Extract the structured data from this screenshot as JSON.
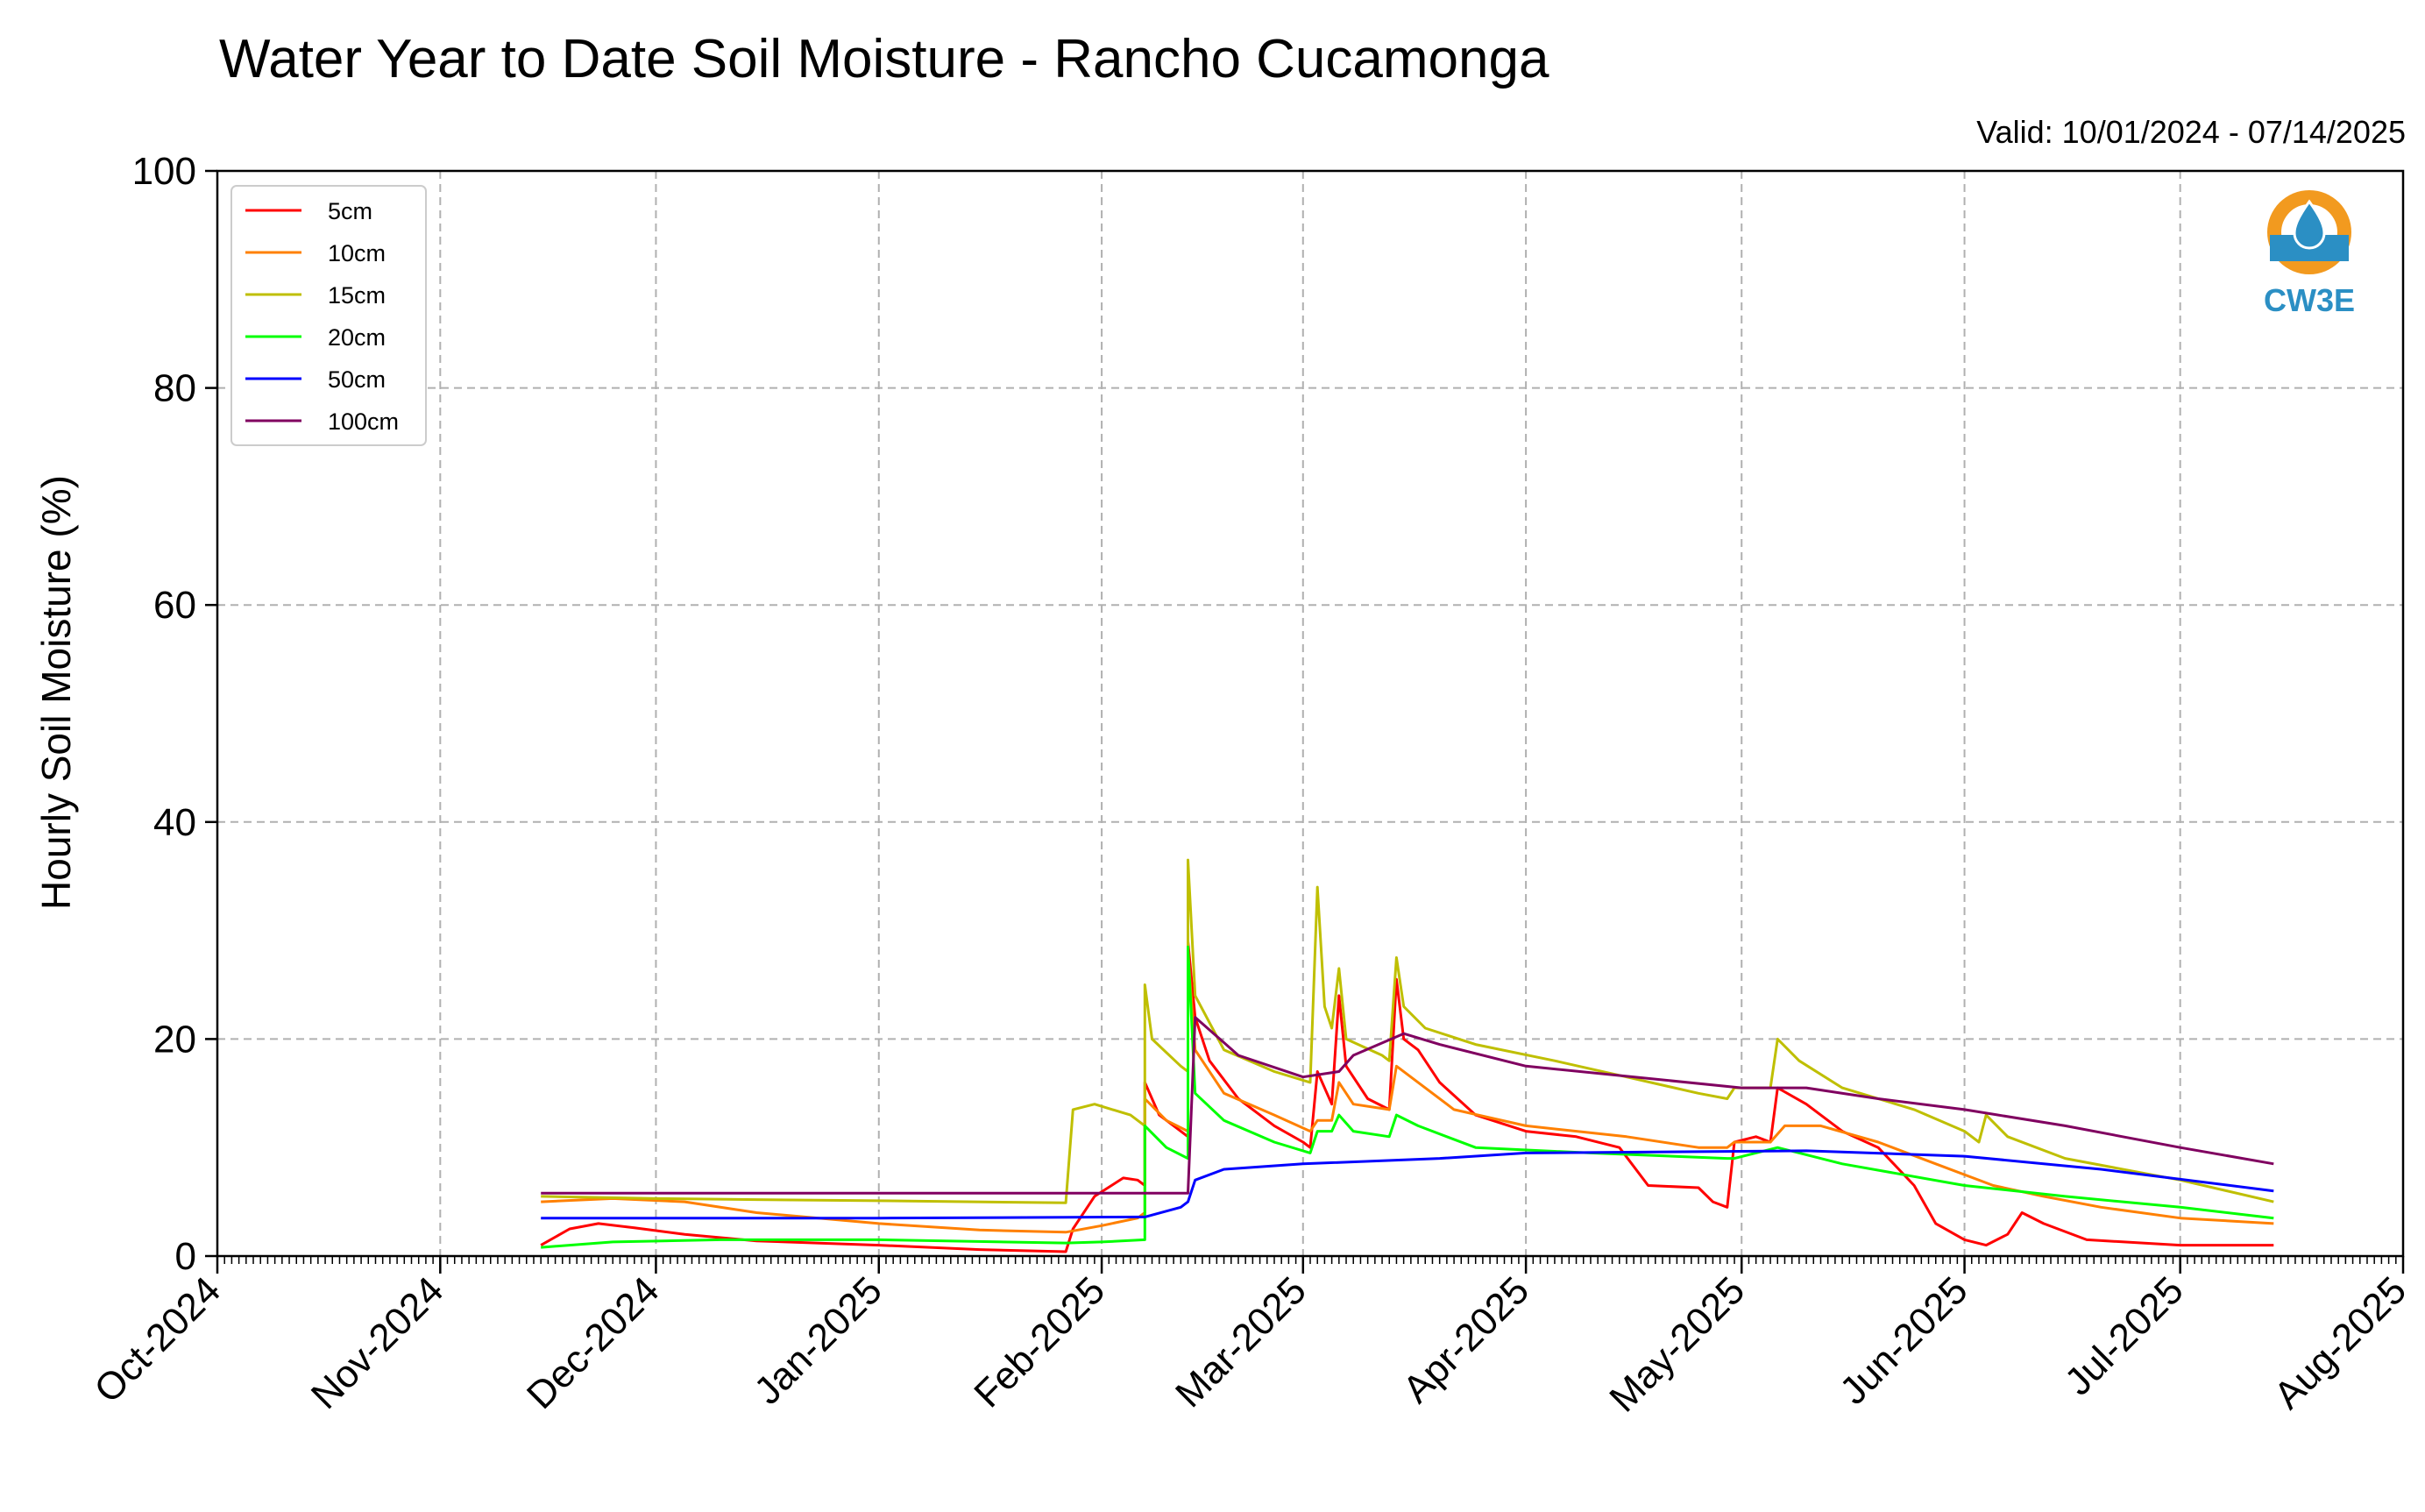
{
  "chart_data": {
    "type": "line",
    "title": "Water Year to Date Soil Moisture - Rancho Cucamonga",
    "subtitle": "Valid: 10/01/2024 - 07/14/2025",
    "ylabel": "Hourly Soil Moisture (%)",
    "xlabel": "",
    "ylim": [
      0,
      100
    ],
    "yticks": [
      "0",
      "20",
      "40",
      "60",
      "80",
      "100"
    ],
    "xlim": [
      "2024-10-01",
      "2025-08-01"
    ],
    "xticks": [
      {
        "date": "2024-10-01",
        "label": "Oct-2024"
      },
      {
        "date": "2024-11-01",
        "label": "Nov-2024"
      },
      {
        "date": "2024-12-01",
        "label": "Dec-2024"
      },
      {
        "date": "2025-01-01",
        "label": "Jan-2025"
      },
      {
        "date": "2025-02-01",
        "label": "Feb-2025"
      },
      {
        "date": "2025-03-01",
        "label": "Mar-2025"
      },
      {
        "date": "2025-04-01",
        "label": "Apr-2025"
      },
      {
        "date": "2025-05-01",
        "label": "May-2025"
      },
      {
        "date": "2025-06-01",
        "label": "Jun-2025"
      },
      {
        "date": "2025-07-01",
        "label": "Jul-2025"
      },
      {
        "date": "2025-08-01",
        "label": "Aug-2025"
      }
    ],
    "grid": true,
    "legend_position": "upper-left",
    "logo_label": "CW3E",
    "series": [
      {
        "name": "5cm",
        "color": "#ff0000",
        "points": [
          [
            "2024-11-15",
            1.0
          ],
          [
            "2024-11-19",
            2.5
          ],
          [
            "2024-11-23",
            3.0
          ],
          [
            "2024-11-28",
            2.6
          ],
          [
            "2024-12-05",
            2.0
          ],
          [
            "2024-12-15",
            1.4
          ],
          [
            "2025-01-01",
            1.0
          ],
          [
            "2025-01-15",
            0.6
          ],
          [
            "2025-01-27",
            0.4
          ],
          [
            "2025-01-28",
            2.5
          ],
          [
            "2025-01-31",
            5.5
          ],
          [
            "2025-02-04",
            7.2
          ],
          [
            "2025-02-06",
            7.0
          ],
          [
            "2025-02-07",
            6.5
          ],
          [
            "2025-02-07",
            16.0
          ],
          [
            "2025-02-09",
            13.0
          ],
          [
            "2025-02-12",
            11.5
          ],
          [
            "2025-02-13",
            11.0
          ],
          [
            "2025-02-13",
            29.0
          ],
          [
            "2025-02-14",
            22.0
          ],
          [
            "2025-02-16",
            18.0
          ],
          [
            "2025-02-20",
            14.5
          ],
          [
            "2025-02-25",
            12.0
          ],
          [
            "2025-03-01",
            10.5
          ],
          [
            "2025-03-02",
            10.0
          ],
          [
            "2025-03-03",
            17.0
          ],
          [
            "2025-03-05",
            14.0
          ],
          [
            "2025-03-06",
            24.0
          ],
          [
            "2025-03-07",
            17.5
          ],
          [
            "2025-03/10",
            14.5
          ],
          [
            "2025-03-13",
            13.5
          ],
          [
            "2025-03-14",
            25.5
          ],
          [
            "2025-03-15",
            20.0
          ],
          [
            "2025-03-17",
            19.0
          ],
          [
            "2025-03-20",
            16.0
          ],
          [
            "2025-03-25",
            13.0
          ],
          [
            "2025-04-01",
            11.5
          ],
          [
            "2025-04-08",
            11.0
          ],
          [
            "2025-04-14",
            10.0
          ],
          [
            "2025-04-18",
            6.5
          ],
          [
            "2025-04-25",
            6.3
          ],
          [
            "2025-04-27",
            5.0
          ],
          [
            "2025-04-29",
            4.5
          ],
          [
            "2025-04-30",
            10.5
          ],
          [
            "2025-05-03",
            11.0
          ],
          [
            "2025-05-05",
            10.5
          ],
          [
            "2025-05-06",
            15.5
          ],
          [
            "2025-05-10",
            14.0
          ],
          [
            "2025-05-15",
            11.5
          ],
          [
            "2025-05-20",
            10.0
          ],
          [
            "2025-05-25",
            6.5
          ],
          [
            "2025-05-28",
            3.0
          ],
          [
            "2025-06-01",
            1.5
          ],
          [
            "2025-06-04",
            1.0
          ],
          [
            "2025-06-07",
            2.0
          ],
          [
            "2025-06-09",
            4.0
          ],
          [
            "2025-06-12",
            3.0
          ],
          [
            "2025-06-18",
            1.5
          ],
          [
            "2025-07-01",
            1.0
          ],
          [
            "2025-07-14",
            1.0
          ]
        ]
      },
      {
        "name": "10cm",
        "color": "#ff8000",
        "points": [
          [
            "2024-11-15",
            5.0
          ],
          [
            "2024-11-25",
            5.3
          ],
          [
            "2024-12-05",
            5.0
          ],
          [
            "2024-12-15",
            4.0
          ],
          [
            "2025-01-01",
            3.0
          ],
          [
            "2025-01-15",
            2.4
          ],
          [
            "2025-01-27",
            2.2
          ],
          [
            "2025-02-01",
            2.8
          ],
          [
            "2025-02-06",
            3.5
          ],
          [
            "2025-02-07",
            4.0
          ],
          [
            "2025-02-07",
            14.5
          ],
          [
            "2025-02-10",
            12.5
          ],
          [
            "2025-02-13",
            11.5
          ],
          [
            "2025-02-13",
            28.0
          ],
          [
            "2025-02-14",
            19.0
          ],
          [
            "2025-02-18",
            15.0
          ],
          [
            "2025-02-25",
            13.0
          ],
          [
            "2025-03-02",
            11.5
          ],
          [
            "2025-03-03",
            12.5
          ],
          [
            "2025-03-05",
            12.5
          ],
          [
            "2025-03-06",
            16.0
          ],
          [
            "2025-03-08",
            14.0
          ],
          [
            "2025-03-13",
            13.5
          ],
          [
            "2025-03-14",
            17.5
          ],
          [
            "2025-03-17",
            16.0
          ],
          [
            "2025-03-22",
            13.5
          ],
          [
            "2025-04-01",
            12.0
          ],
          [
            "2025-04-15",
            11.0
          ],
          [
            "2025-04-25",
            10.0
          ],
          [
            "2025-04-29",
            10.0
          ],
          [
            "2025-04-30",
            10.5
          ],
          [
            "2025-05-05",
            10.5
          ],
          [
            "2025-05-07",
            12.0
          ],
          [
            "2025-05-12",
            12.0
          ],
          [
            "2025-05-20",
            10.5
          ],
          [
            "2025-05-28",
            8.5
          ],
          [
            "2025-06-05",
            6.5
          ],
          [
            "2025-06-12",
            5.5
          ],
          [
            "2025-06-20",
            4.5
          ],
          [
            "2025-07-01",
            3.5
          ],
          [
            "2025-07-14",
            3.0
          ]
        ]
      },
      {
        "name": "15cm",
        "color": "#bfbf00",
        "points": [
          [
            "2024-11-15",
            5.5
          ],
          [
            "2024-12-01",
            5.3
          ],
          [
            "2024-12-15",
            5.2
          ],
          [
            "2025-01-01",
            5.1
          ],
          [
            "2025-01-27",
            4.9
          ],
          [
            "2025-01-28",
            13.5
          ],
          [
            "2025-01-31",
            14.0
          ],
          [
            "2025-02-05",
            13.0
          ],
          [
            "2025-02-07",
            12.0
          ],
          [
            "2025-02-07",
            25.0
          ],
          [
            "2025-02-08",
            20.0
          ],
          [
            "2025-02-12",
            17.5
          ],
          [
            "2025-02-13",
            17.0
          ],
          [
            "2025-02-13",
            36.5
          ],
          [
            "2025-02-14",
            24.0
          ],
          [
            "2025-02-18",
            19.0
          ],
          [
            "2025-02-25",
            17.0
          ],
          [
            "2025-03-02",
            16.0
          ],
          [
            "2025-03-03",
            34.0
          ],
          [
            "2025-03-04",
            23.0
          ],
          [
            "2025-03-05",
            21.0
          ],
          [
            "2025-03-06",
            26.5
          ],
          [
            "2025-03-07",
            20.0
          ],
          [
            "2025-03-12",
            18.5
          ],
          [
            "2025-03-13",
            18.0
          ],
          [
            "2025-03-14",
            27.5
          ],
          [
            "2025-03-15",
            23.0
          ],
          [
            "2025-03-18",
            21.0
          ],
          [
            "2025-03-25",
            19.5
          ],
          [
            "2025-04-05",
            18.0
          ],
          [
            "2025-04-15",
            16.5
          ],
          [
            "2025-04-25",
            15.0
          ],
          [
            "2025-04-29",
            14.5
          ],
          [
            "2025-04-30",
            15.5
          ],
          [
            "2025-05-05",
            15.5
          ],
          [
            "2025-05-06",
            20.0
          ],
          [
            "2025-05-09",
            18.0
          ],
          [
            "2025-05-15",
            15.5
          ],
          [
            "2025-05-25",
            13.5
          ],
          [
            "2025-06-01",
            11.5
          ],
          [
            "2025-06-03",
            10.5
          ],
          [
            "2025-06-04",
            13.0
          ],
          [
            "2025-06-07",
            11.0
          ],
          [
            "2025-06-15",
            9.0
          ],
          [
            "2025-07-01",
            7.0
          ],
          [
            "2025-07-14",
            5.0
          ]
        ]
      },
      {
        "name": "20cm",
        "color": "#00ff00",
        "points": [
          [
            "2024-11-15",
            0.8
          ],
          [
            "2024-11-25",
            1.3
          ],
          [
            "2024-12-10",
            1.5
          ],
          [
            "2025-01-01",
            1.5
          ],
          [
            "2025-01-27",
            1.2
          ],
          [
            "2025-02-01",
            1.3
          ],
          [
            "2025-02-07",
            1.5
          ],
          [
            "2025-02-07",
            12.0
          ],
          [
            "2025-02-10",
            10.0
          ],
          [
            "2025-02-13",
            9.0
          ],
          [
            "2025-02-13",
            28.5
          ],
          [
            "2025-02-14",
            15.0
          ],
          [
            "2025-02-18",
            12.5
          ],
          [
            "2025-02-25",
            10.5
          ],
          [
            "2025-03-02",
            9.5
          ],
          [
            "2025-03-03",
            11.5
          ],
          [
            "2025-03-05",
            11.5
          ],
          [
            "2025-03-06",
            13.0
          ],
          [
            "2025-03-08",
            11.5
          ],
          [
            "2025-03-13",
            11.0
          ],
          [
            "2025-03-14",
            13.0
          ],
          [
            "2025-03-17",
            12.0
          ],
          [
            "2025-03-25",
            10.0
          ],
          [
            "2025-04-10",
            9.5
          ],
          [
            "2025-04-29",
            9.0
          ],
          [
            "2025-04-30",
            9.0
          ],
          [
            "2025-05-06",
            10.0
          ],
          [
            "2025-05-15",
            8.5
          ],
          [
            "2025-06-01",
            6.5
          ],
          [
            "2025-06-15",
            5.5
          ],
          [
            "2025-07-01",
            4.5
          ],
          [
            "2025-07-14",
            3.5
          ]
        ]
      },
      {
        "name": "50cm",
        "color": "#0000ff",
        "points": [
          [
            "2024-11-15",
            3.5
          ],
          [
            "2025-01-01",
            3.5
          ],
          [
            "2025-02-07",
            3.6
          ],
          [
            "2025-02-12",
            4.5
          ],
          [
            "2025-02-13",
            5.0
          ],
          [
            "2025-02-14",
            7.0
          ],
          [
            "2025-02-18",
            8.0
          ],
          [
            "2025-03-01",
            8.5
          ],
          [
            "2025-03-20",
            9.0
          ],
          [
            "2025-04-01",
            9.5
          ],
          [
            "2025-05-10",
            9.7
          ],
          [
            "2025-06-01",
            9.2
          ],
          [
            "2025-06-20",
            8.0
          ],
          [
            "2025-07-14",
            6.0
          ]
        ]
      },
      {
        "name": "100cm",
        "color": "#800060",
        "points": [
          [
            "2024-11-15",
            5.8
          ],
          [
            "2025-01-01",
            5.8
          ],
          [
            "2025-02-13",
            5.8
          ],
          [
            "2025-02-14",
            22.0
          ],
          [
            "2025-02-20",
            18.5
          ],
          [
            "2025-03-01",
            16.5
          ],
          [
            "2025-03-06",
            17.0
          ],
          [
            "2025-03-08",
            18.5
          ],
          [
            "2025-03-15",
            20.5
          ],
          [
            "2025-03-20",
            19.5
          ],
          [
            "2025-04-01",
            17.5
          ],
          [
            "2025-05-01",
            15.5
          ],
          [
            "2025-05-10",
            15.5
          ],
          [
            "2025-05-20",
            14.5
          ],
          [
            "2025-06-01",
            13.5
          ],
          [
            "2025-06-15",
            12.0
          ],
          [
            "2025-07-01",
            10.0
          ],
          [
            "2025-07-14",
            8.5
          ]
        ]
      }
    ]
  }
}
